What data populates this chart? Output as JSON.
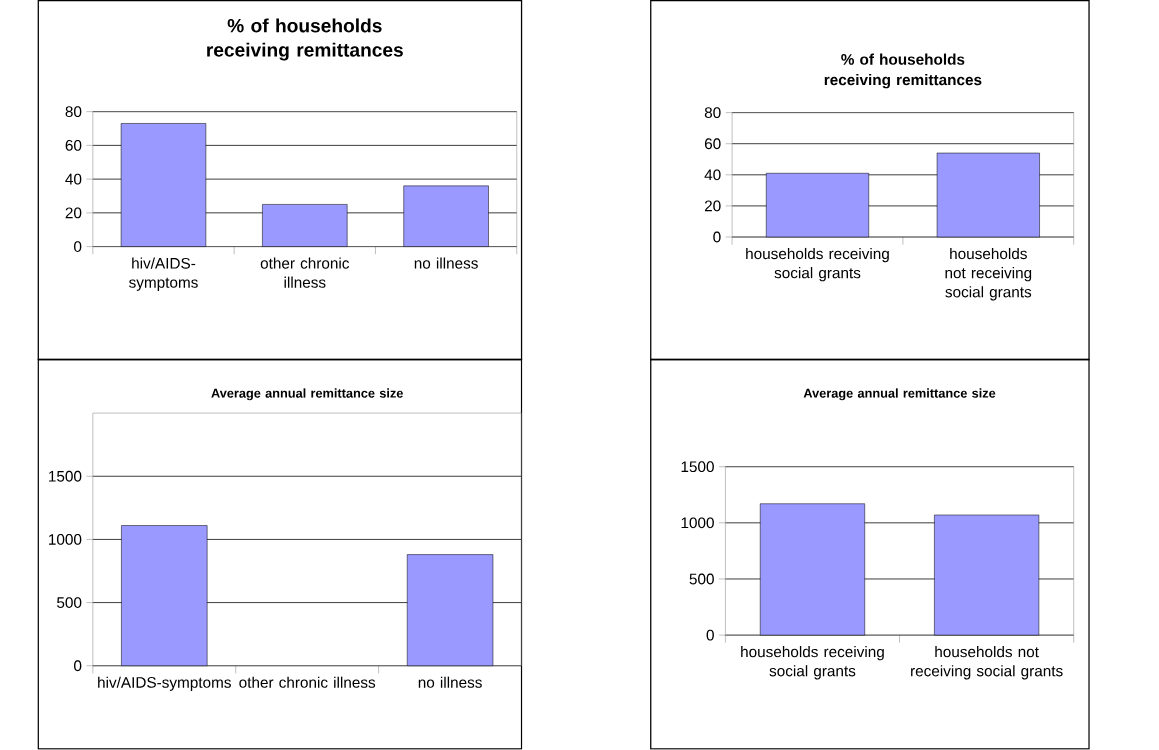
{
  "chart_data": [
    {
      "type": "bar",
      "title": "% of households receiving remittances",
      "categories": [
        "hiv/AIDS-symptoms",
        "other chronic illness",
        "no illness"
      ],
      "values": [
        73,
        25,
        36
      ],
      "color": "#9999ff",
      "ylim": [
        0,
        80
      ],
      "yticks": [
        0,
        20,
        40,
        60,
        80
      ],
      "grid": "y"
    },
    {
      "type": "bar",
      "title": "% of  households receiving remittances",
      "categories": [
        "households receiving social grants",
        "households not receiving social grants"
      ],
      "values": [
        41,
        54
      ],
      "color": "#9999ff",
      "ylim": [
        0,
        80
      ],
      "yticks": [
        0,
        20,
        40,
        60,
        80
      ],
      "grid": "y"
    },
    {
      "type": "bar",
      "title": "Average annual remittance size",
      "categories": [
        "hiv/AIDS-symptoms",
        "other chronic illness",
        "no illness"
      ],
      "values": [
        1110,
        null,
        880
      ],
      "color": "#9999ff",
      "ylim": [
        0,
        2000
      ],
      "yticks": [
        0,
        500,
        1000,
        1500
      ],
      "grid": "y"
    },
    {
      "type": "bar",
      "title": "Average annual remittance size",
      "categories": [
        "households receiving social grants",
        "households not receiving social grants"
      ],
      "values": [
        1170,
        1070
      ],
      "color": "#9999ff",
      "ylim": [
        0,
        1500
      ],
      "yticks": [
        0,
        500,
        1000,
        1500
      ],
      "grid": "y"
    }
  ]
}
